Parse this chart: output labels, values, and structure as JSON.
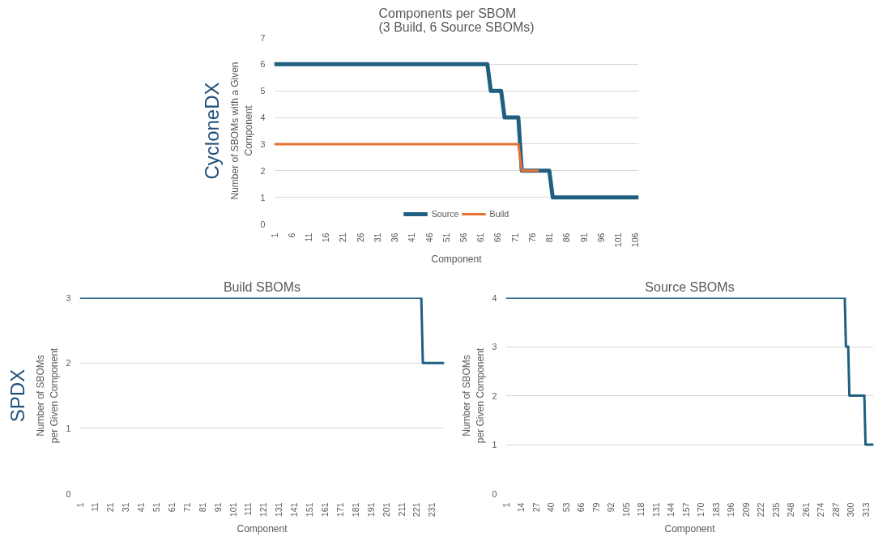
{
  "chart_data": [
    {
      "type": "line",
      "title": "Components per SBOM\n(3 Build, 6 Source SBOMs)",
      "xlabel": "Component",
      "ylabel": "Number of SBOMs with a Given\nComponent",
      "annotations": [
        "CycloneDX"
      ],
      "xlim": [
        1,
        107
      ],
      "xticks": [
        1,
        6,
        11,
        16,
        21,
        26,
        31,
        36,
        41,
        46,
        51,
        56,
        61,
        66,
        71,
        76,
        81,
        86,
        91,
        96,
        101,
        106
      ],
      "ylim": [
        0,
        7
      ],
      "yticks": [
        0,
        1,
        2,
        3,
        4,
        5,
        6,
        7
      ],
      "grid": "y",
      "legend": "bottom",
      "series": [
        {
          "name": "Source",
          "color": "#1f5f7f",
          "x": [
            1,
            63,
            64,
            67,
            68,
            72,
            73,
            81,
            82,
            107
          ],
          "values": [
            6,
            6,
            5,
            5,
            4,
            4,
            2,
            2,
            1,
            1
          ]
        },
        {
          "name": "Build",
          "color": "#e97132",
          "x": [
            1,
            72,
            73,
            78
          ],
          "values": [
            3,
            3,
            2,
            2
          ]
        }
      ]
    },
    {
      "type": "line",
      "title": "Build SBOMs",
      "xlabel": "Component",
      "ylabel": "Number of SBOMs\nper Given Component",
      "annotations": [
        "SPDX"
      ],
      "xlim": [
        1,
        239
      ],
      "xticks": [
        1,
        11,
        21,
        31,
        41,
        51,
        61,
        71,
        81,
        91,
        101,
        111,
        121,
        131,
        141,
        151,
        161,
        171,
        181,
        191,
        201,
        211,
        221,
        231
      ],
      "ylim": [
        0,
        3
      ],
      "yticks": [
        0,
        1,
        2,
        3
      ],
      "grid": "y",
      "series": [
        {
          "color": "#1f5f7f",
          "x": [
            1,
            224,
            225,
            239
          ],
          "values": [
            3,
            3,
            2,
            2
          ]
        }
      ]
    },
    {
      "type": "line",
      "title": "Source SBOMs",
      "xlabel": "Component",
      "ylabel": "Number of SBOMs\nper Given Component",
      "xlim": [
        1,
        320
      ],
      "xticks": [
        1,
        14,
        27,
        40,
        53,
        66,
        79,
        92,
        105,
        118,
        131,
        144,
        157,
        170,
        183,
        196,
        209,
        222,
        235,
        248,
        261,
        274,
        287,
        300,
        313
      ],
      "ylim": [
        0,
        4
      ],
      "yticks": [
        0,
        1,
        2,
        3,
        4
      ],
      "grid": "y",
      "series": [
        {
          "color": "#1f5f7f",
          "x": [
            1,
            295,
            296,
            298,
            299,
            312,
            313,
            320
          ],
          "values": [
            4,
            4,
            3,
            3,
            2,
            2,
            1,
            1
          ]
        }
      ]
    }
  ]
}
